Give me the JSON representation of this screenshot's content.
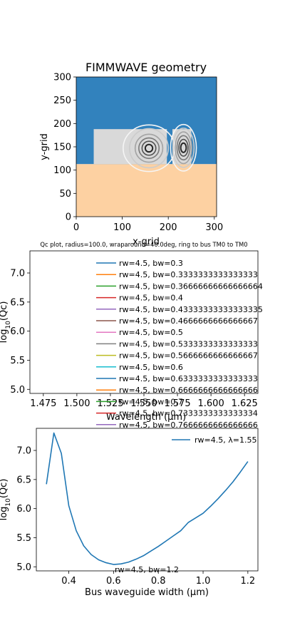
{
  "chart_data": [
    {
      "type": "heatmap",
      "title": "FIMMWAVE geometry",
      "xlabel": "x-grid",
      "ylabel": "y-grid",
      "xlim": [
        0,
        305
      ],
      "ylim": [
        0,
        300
      ],
      "xticks": [
        "0",
        "100",
        "200",
        "300"
      ],
      "yticks": [
        "0",
        "50",
        "100",
        "150",
        "200",
        "250",
        "300"
      ],
      "regions": [
        {
          "name": "substrate",
          "x": [
            0,
            305
          ],
          "y": [
            0,
            113
          ],
          "color": "#fdd1a2"
        },
        {
          "name": "cladding",
          "x": [
            0,
            305
          ],
          "y": [
            113,
            300
          ],
          "color": "#3282bd"
        },
        {
          "name": "ring-waveguide",
          "x": [
            38,
            197
          ],
          "y": [
            113,
            188
          ],
          "color": "#d9d9d9"
        },
        {
          "name": "bus-waveguide",
          "x": [
            209,
            250
          ],
          "y": [
            113,
            188
          ],
          "color": "#d9d9d9"
        }
      ],
      "mode_contours": [
        {
          "cx": 158,
          "cy": 147,
          "rx": [
            8,
            15,
            22,
            30,
            42,
            56
          ],
          "ry": [
            8,
            15,
            22,
            30,
            42,
            50
          ]
        },
        {
          "cx": 233,
          "cy": 148,
          "rx": [
            6,
            10,
            14,
            18,
            23,
            28
          ],
          "ry": [
            10,
            18,
            26,
            34,
            42,
            50
          ]
        }
      ]
    },
    {
      "type": "line",
      "title": "Qc plot, radius=100.0, wraparound=40.0deg, ring to bus TM0 to TM0",
      "xlabel": "Wavelength (μm)",
      "ylabel": "log10(Qc)",
      "xlim": [
        1.465,
        1.635
      ],
      "ylim": [
        4.93,
        7.38
      ],
      "xticks": [
        "1.475",
        "1.500",
        "1.525",
        "1.550",
        "1.575",
        "1.600",
        "1.625"
      ],
      "yticks": [
        "5.0",
        "5.5",
        "6.0",
        "6.5",
        "7.0"
      ],
      "legend": "upper-center",
      "series": [
        {
          "name": "rw=4.5, bw=0.3",
          "color": "#1f77b4",
          "values": []
        },
        {
          "name": "rw=4.5, bw=0.3333333333333333",
          "color": "#ff7f0e",
          "values": []
        },
        {
          "name": "rw=4.5, bw=0.36666666666666664",
          "color": "#2ca02c",
          "values": []
        },
        {
          "name": "rw=4.5, bw=0.4",
          "color": "#d62728",
          "values": []
        },
        {
          "name": "rw=4.5, bw=0.43333333333333335",
          "color": "#9467bd",
          "values": []
        },
        {
          "name": "rw=4.5, bw=0.4666666666666667",
          "color": "#8c564b",
          "values": []
        },
        {
          "name": "rw=4.5, bw=0.5",
          "color": "#e377c2",
          "values": []
        },
        {
          "name": "rw=4.5, bw=0.5333333333333333",
          "color": "#7f7f7f",
          "values": []
        },
        {
          "name": "rw=4.5, bw=0.5666666666666667",
          "color": "#bcbd22",
          "values": []
        },
        {
          "name": "rw=4.5, bw=0.6",
          "color": "#17becf",
          "values": []
        },
        {
          "name": "rw=4.5, bw=0.6333333333333333",
          "color": "#1f77b4",
          "values": []
        },
        {
          "name": "rw=4.5, bw=0.6666666666666666",
          "color": "#ff7f0e",
          "values": []
        },
        {
          "name": "rw=4.5, bw=0.7",
          "color": "#2ca02c",
          "values": []
        },
        {
          "name": "rw=4.5, bw=0.7333333333333334",
          "color": "#d62728",
          "values": []
        },
        {
          "name": "rw=4.5, bw=0.7666666666666666",
          "color": "#9467bd",
          "values": []
        }
      ]
    },
    {
      "type": "line",
      "title": "",
      "xlabel": "Bus waveguide width (μm)",
      "ylabel": "log10(Qc)",
      "xlim": [
        0.255,
        1.245
      ],
      "ylim": [
        4.93,
        7.38
      ],
      "xticks": [
        "0.4",
        "0.6",
        "0.8",
        "1.0",
        "1.2"
      ],
      "yticks": [
        "5.0",
        "5.5",
        "6.0",
        "6.5",
        "7.0"
      ],
      "legend": "upper-right",
      "overlap_text": "rw=4.5, bw=1.2",
      "series": [
        {
          "name": "rw=4.5, λ=1.55",
          "color": "#1f77b4",
          "x": [
            0.3,
            0.3333,
            0.3667,
            0.4,
            0.4333,
            0.4667,
            0.5,
            0.5333,
            0.5667,
            0.6,
            0.6333,
            0.6667,
            0.7,
            0.7333,
            0.7667,
            0.8,
            0.8333,
            0.8667,
            0.9,
            0.9333,
            0.9667,
            1.0,
            1.0333,
            1.0667,
            1.1,
            1.1333,
            1.1667,
            1.2
          ],
          "y": [
            6.42,
            7.3,
            6.95,
            6.05,
            5.62,
            5.36,
            5.21,
            5.12,
            5.07,
            5.04,
            5.05,
            5.08,
            5.13,
            5.19,
            5.27,
            5.35,
            5.44,
            5.53,
            5.62,
            5.76,
            5.84,
            5.92,
            6.04,
            6.17,
            6.31,
            6.46,
            6.63,
            6.81
          ]
        }
      ]
    }
  ]
}
